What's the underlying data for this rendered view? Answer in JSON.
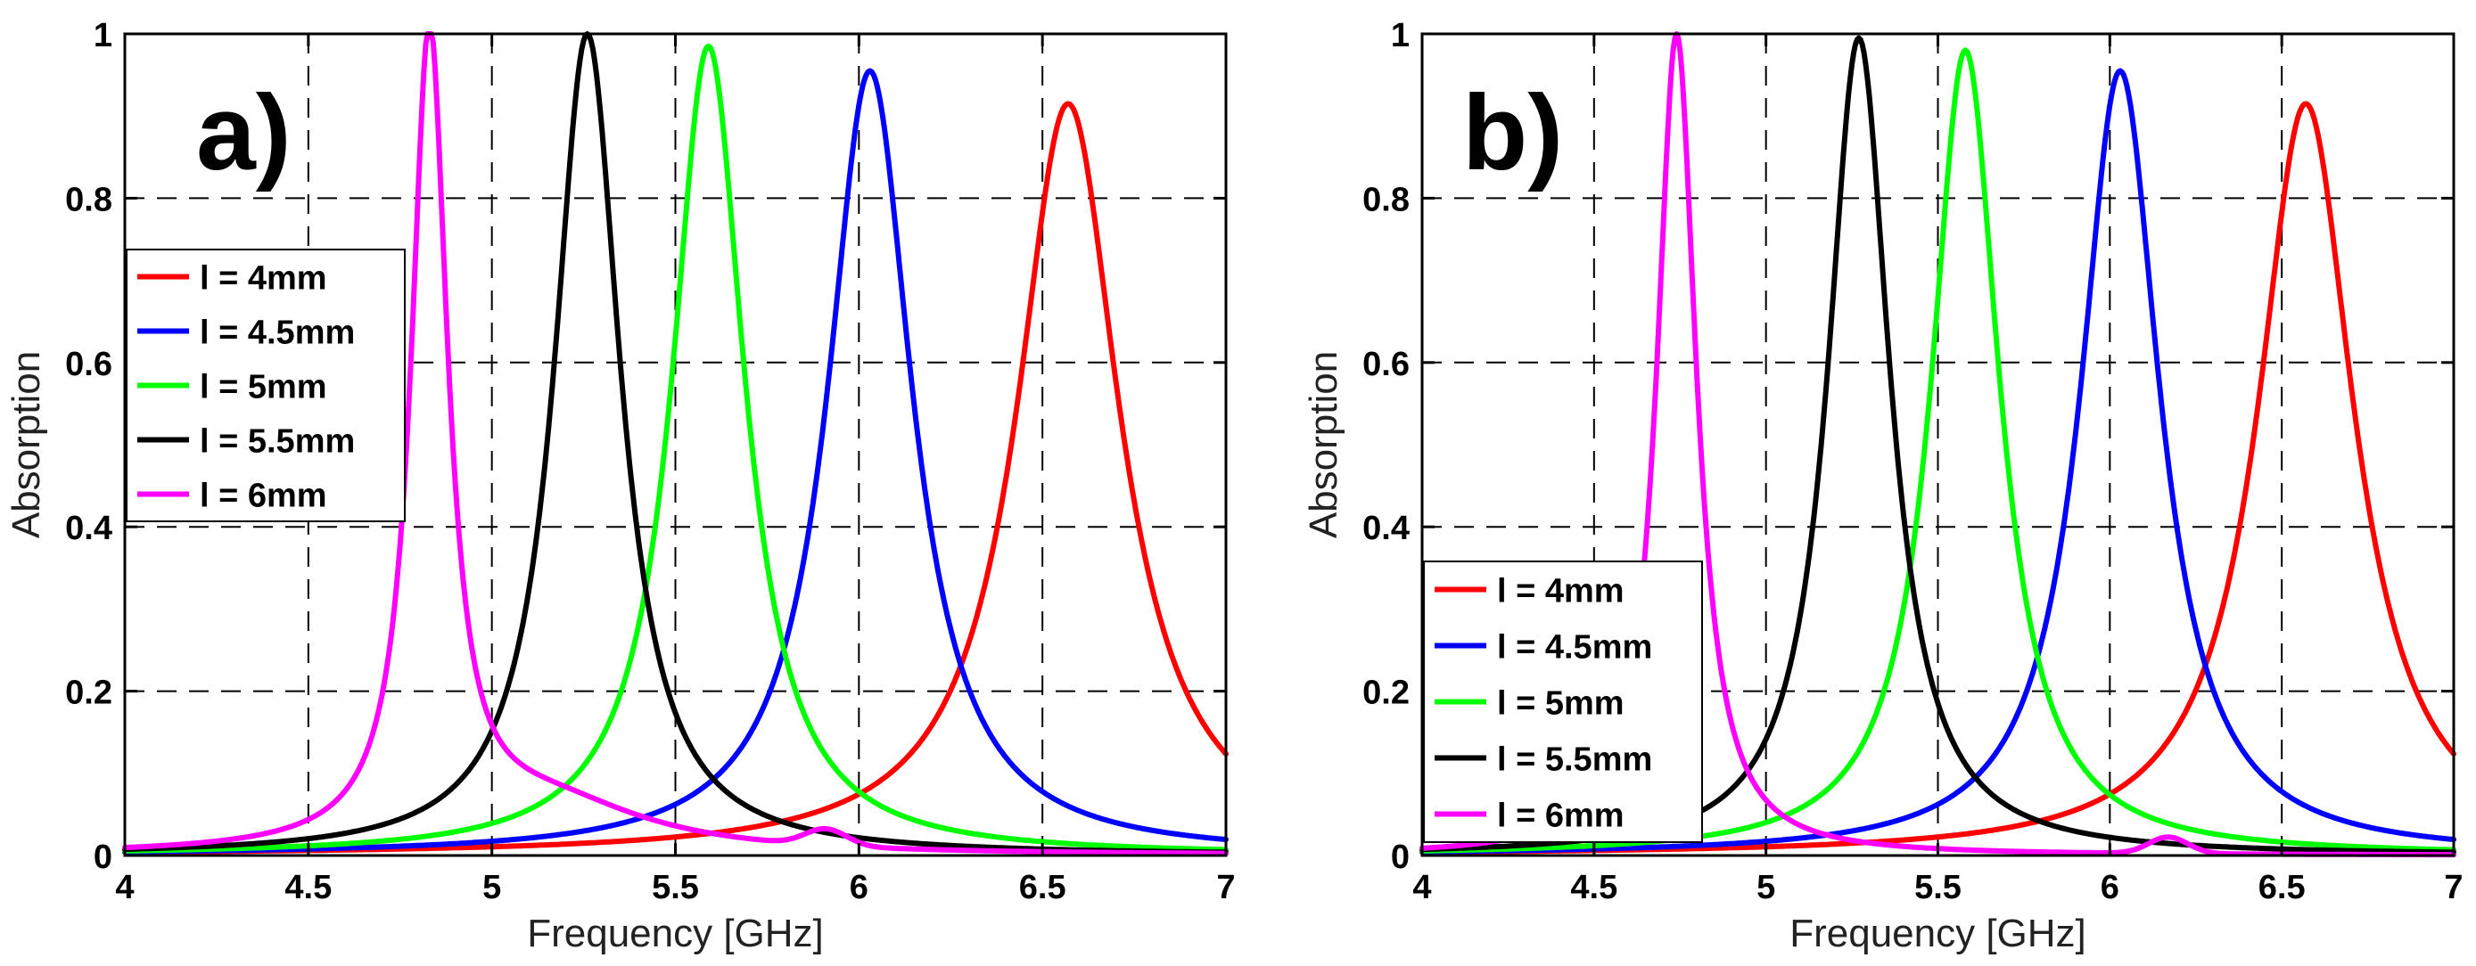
{
  "chart_data": [
    {
      "type": "line",
      "panel_label": "a)",
      "xlabel": "Frequency [GHz]",
      "ylabel": "Absorption",
      "xlim": [
        4,
        7
      ],
      "ylim": [
        0,
        1
      ],
      "xticks": [
        "4",
        "4.5",
        "5",
        "5.5",
        "6",
        "6.5",
        "7"
      ],
      "yticks": [
        "0",
        "0.2",
        "0.4",
        "0.6",
        "0.8",
        "1"
      ],
      "grid": true,
      "legend_position": "upper-left",
      "series": [
        {
          "name": "l = 4mm",
          "color": "#ff0000",
          "peak_x": 6.57,
          "peak_y": 0.915,
          "width": 0.17,
          "baseline": 0.0
        },
        {
          "name": "l = 4.5mm",
          "color": "#0000ff",
          "peak_x": 6.03,
          "peak_y": 0.955,
          "width": 0.14,
          "baseline": 0.0
        },
        {
          "name": "l = 5mm",
          "color": "#00ff00",
          "peak_x": 5.59,
          "peak_y": 0.985,
          "width": 0.12,
          "baseline": 0.0
        },
        {
          "name": "l = 5.5mm",
          "color": "#000000",
          "peak_x": 5.26,
          "peak_y": 1.0,
          "width": 0.11,
          "baseline": 0.0
        },
        {
          "name": "l = 6mm",
          "color": "#ff00ff",
          "peak_x": 4.83,
          "peak_y": 0.985,
          "width": 0.06,
          "baseline": 0.0,
          "shoulder_x": 5.15,
          "shoulder_y": 0.06,
          "shoulder_w": 0.33,
          "bump_x": 5.91,
          "bump_y": 0.02
        }
      ]
    },
    {
      "type": "line",
      "panel_label": "b)",
      "xlabel": "Frequency [GHz]",
      "ylabel": "Absorption",
      "xlim": [
        4,
        7
      ],
      "ylim": [
        0,
        1
      ],
      "xticks": [
        "4",
        "4.5",
        "5",
        "5.5",
        "6",
        "6.5",
        "7"
      ],
      "yticks": [
        "0",
        "0.2",
        "0.4",
        "0.6",
        "0.8",
        "1"
      ],
      "grid": true,
      "legend_position": "lower-left",
      "series": [
        {
          "name": "l = 4mm",
          "color": "#ff0000",
          "peak_x": 6.57,
          "peak_y": 0.915,
          "width": 0.17,
          "baseline": 0.0
        },
        {
          "name": "l = 4.5mm",
          "color": "#0000ff",
          "peak_x": 6.03,
          "peak_y": 0.955,
          "width": 0.14,
          "baseline": 0.0
        },
        {
          "name": "l = 5mm",
          "color": "#00ff00",
          "peak_x": 5.58,
          "peak_y": 0.98,
          "width": 0.12,
          "baseline": 0.0
        },
        {
          "name": "l = 5.5mm",
          "color": "#000000",
          "peak_x": 5.27,
          "peak_y": 0.995,
          "width": 0.11,
          "baseline": 0.0
        },
        {
          "name": "l = 6mm",
          "color": "#ff00ff",
          "peak_x": 4.74,
          "peak_y": 1.0,
          "width": 0.07,
          "baseline": 0.0,
          "bump_x": 6.17,
          "bump_y": 0.02
        }
      ]
    }
  ]
}
